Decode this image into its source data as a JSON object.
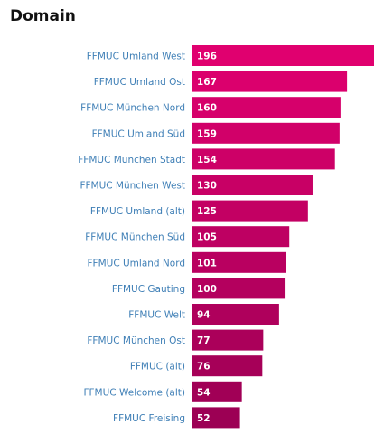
{
  "panel": {
    "title": "Domain"
  },
  "chart_data": {
    "type": "bar",
    "orientation": "horizontal",
    "categories": [
      "FFMUC Umland West",
      "FFMUC Umland Ost",
      "FFMUC München Nord",
      "FFMUC Umland Süd",
      "FFMUC München Stadt",
      "FFMUC München West",
      "FFMUC Umland (alt)",
      "FFMUC München Süd",
      "FFMUC Umland Nord",
      "FFMUC Gauting",
      "FFMUC Welt",
      "FFMUC München Ost",
      "FFMUC (alt)",
      "FFMUC Welcome (alt)",
      "FFMUC Freising"
    ],
    "values": [
      196,
      167,
      160,
      159,
      154,
      130,
      125,
      105,
      101,
      100,
      94,
      77,
      76,
      54,
      52
    ],
    "title": "Domain",
    "xlabel": "",
    "ylabel": "",
    "xlim": [
      0,
      196
    ],
    "grid": false,
    "legend": "none",
    "colors": {
      "bar_high": "#e0006f",
      "bar_low": "#9c0054",
      "category_label": "#3f7fb6",
      "value_label": "#ffffff"
    }
  }
}
